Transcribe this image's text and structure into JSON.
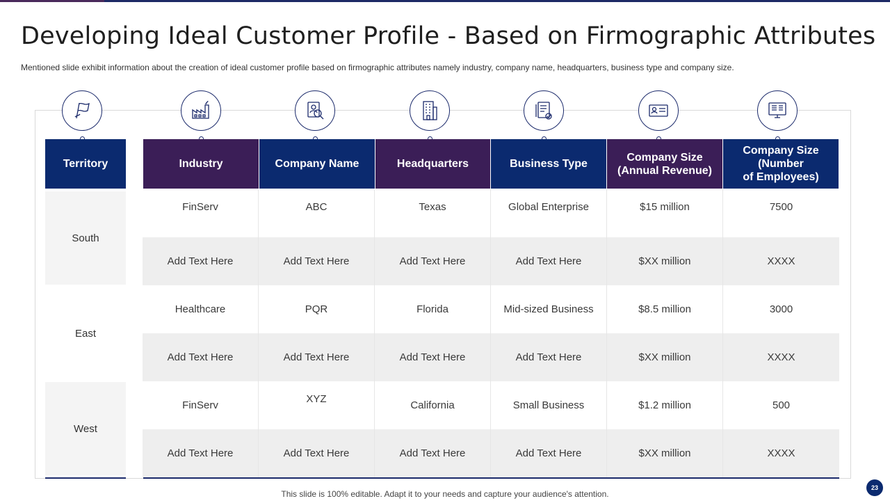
{
  "title": "Developing Ideal Customer Profile - Based on Firmographic Attributes",
  "subtitle": "Mentioned slide exhibit information  about the creation of ideal customer profile  based on firmographic  attributes namely industry, company name, headquarters,  business type and company size.",
  "columns": {
    "territory": "Territory",
    "industry": "Industry",
    "company_name": "Company Name",
    "headquarters": "Headquarters",
    "business_type": "Business Type",
    "size_revenue_1": "Company Size",
    "size_revenue_2": "(Annual Revenue)",
    "size_employees_1": "Company Size",
    "size_employees_2": "(Number",
    "size_employees_3": "of Employees)"
  },
  "icons": [
    "flag-icon",
    "factory-icon",
    "search-profile-icon",
    "building-icon",
    "checklist-icon",
    "id-card-icon",
    "computer-icon"
  ],
  "territories": [
    "South",
    "East",
    "West"
  ],
  "rows": [
    [
      "FinServ",
      "ABC",
      "Texas",
      "Global Enterprise",
      "$15 million",
      "7500"
    ],
    [
      "Add Text Here",
      "Add Text Here",
      "Add Text Here",
      "Add Text Here",
      "$XX million",
      "XXXX"
    ],
    [
      "Healthcare",
      "PQR",
      "Florida",
      "Mid-sized Business",
      "$8.5 million",
      "3000"
    ],
    [
      "Add Text Here",
      "Add Text Here",
      "Add Text Here",
      "Add Text Here",
      "$XX million",
      "XXXX"
    ],
    [
      "FinServ",
      "XYZ",
      "California",
      "Small Business",
      "$1.2 million",
      "500"
    ],
    [
      "Add Text Here",
      "Add Text Here",
      "Add Text Here",
      "Add Text Here",
      "$XX million",
      "XXXX"
    ]
  ],
  "footer": "This slide is 100% editable. Adapt it to your needs and capture your audience's attention.",
  "page_number": "23",
  "colors": {
    "navy": "#0b2a6f",
    "purple": "#3b1e57",
    "row_shade": "#eeeeee"
  }
}
